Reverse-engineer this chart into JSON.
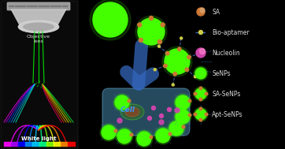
{
  "background_color": "#000000",
  "legend_items": [
    {
      "label": "SA",
      "type": "sa",
      "color": "#cc7733"
    },
    {
      "label": "Bio-aptamer",
      "type": "aptamer",
      "color": "#cccc44"
    },
    {
      "label": "Nucleolin",
      "type": "nucleolin",
      "color": "#cc44aa"
    },
    {
      "label": "SeNPs",
      "type": "green",
      "color": "#44ff00"
    },
    {
      "label": "SA-SeNPs",
      "type": "green_sa",
      "color": "#44ff00"
    },
    {
      "label": "Apt-SeNPs",
      "type": "apt_senp",
      "color": "#44ff00"
    }
  ],
  "text_color": "#dddddd",
  "arrow_color": "#3366bb",
  "green_color": "#44ff00",
  "sa_color": "#cc7733",
  "nucleolin_color": "#cc44aa",
  "aptamer_color": "#cccc44",
  "cell_color": "#4488aa",
  "nucleus_color": "#886644",
  "white_light_label": "White light",
  "objective_label": "Objective\nlens",
  "cell_label": "Cell"
}
